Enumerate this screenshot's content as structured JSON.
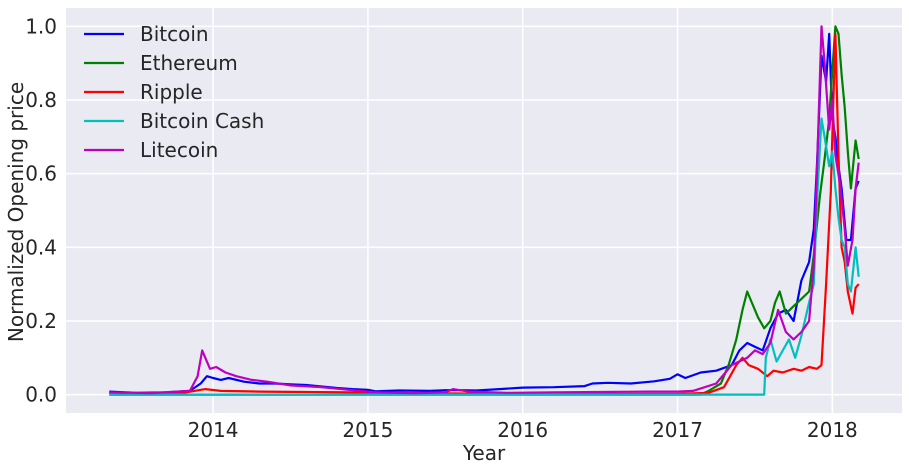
{
  "chart_data": {
    "type": "line",
    "title": "",
    "xlabel": "Year",
    "ylabel": "Normalized Opening price",
    "xlim": [
      2013.05,
      2018.45
    ],
    "ylim": [
      -0.05,
      1.05
    ],
    "grid": true,
    "legend_position": "top-left",
    "x_ticks": [
      {
        "value": 2014,
        "label": "2014"
      },
      {
        "value": 2015,
        "label": "2015"
      },
      {
        "value": 2016,
        "label": "2016"
      },
      {
        "value": 2017,
        "label": "2017"
      },
      {
        "value": 2018,
        "label": "2018"
      }
    ],
    "y_ticks": [
      {
        "value": 0.0,
        "label": "0.0"
      },
      {
        "value": 0.2,
        "label": "0.2"
      },
      {
        "value": 0.4,
        "label": "0.4"
      },
      {
        "value": 0.6,
        "label": "0.6"
      },
      {
        "value": 0.8,
        "label": "0.8"
      },
      {
        "value": 1.0,
        "label": "1.0"
      }
    ],
    "series": [
      {
        "name": "Bitcoin",
        "color": "#0000ff",
        "points": [
          [
            2013.33,
            0.008
          ],
          [
            2013.5,
            0.005
          ],
          [
            2013.7,
            0.006
          ],
          [
            2013.85,
            0.01
          ],
          [
            2013.92,
            0.03
          ],
          [
            2013.96,
            0.05
          ],
          [
            2014.0,
            0.045
          ],
          [
            2014.05,
            0.04
          ],
          [
            2014.1,
            0.045
          ],
          [
            2014.2,
            0.035
          ],
          [
            2014.3,
            0.03
          ],
          [
            2014.4,
            0.03
          ],
          [
            2014.5,
            0.028
          ],
          [
            2014.6,
            0.026
          ],
          [
            2014.7,
            0.022
          ],
          [
            2014.8,
            0.018
          ],
          [
            2014.9,
            0.015
          ],
          [
            2015.0,
            0.013
          ],
          [
            2015.05,
            0.009
          ],
          [
            2015.2,
            0.011
          ],
          [
            2015.4,
            0.01
          ],
          [
            2015.5,
            0.012
          ],
          [
            2015.6,
            0.012
          ],
          [
            2015.7,
            0.011
          ],
          [
            2015.85,
            0.015
          ],
          [
            2016.0,
            0.019
          ],
          [
            2016.2,
            0.02
          ],
          [
            2016.4,
            0.023
          ],
          [
            2016.45,
            0.03
          ],
          [
            2016.55,
            0.032
          ],
          [
            2016.7,
            0.03
          ],
          [
            2016.85,
            0.036
          ],
          [
            2016.95,
            0.043
          ],
          [
            2017.0,
            0.055
          ],
          [
            2017.05,
            0.045
          ],
          [
            2017.15,
            0.06
          ],
          [
            2017.25,
            0.065
          ],
          [
            2017.35,
            0.08
          ],
          [
            2017.4,
            0.12
          ],
          [
            2017.45,
            0.14
          ],
          [
            2017.5,
            0.13
          ],
          [
            2017.55,
            0.12
          ],
          [
            2017.6,
            0.18
          ],
          [
            2017.65,
            0.22
          ],
          [
            2017.7,
            0.23
          ],
          [
            2017.75,
            0.2
          ],
          [
            2017.8,
            0.31
          ],
          [
            2017.85,
            0.36
          ],
          [
            2017.88,
            0.45
          ],
          [
            2017.9,
            0.62
          ],
          [
            2017.93,
            0.92
          ],
          [
            2017.96,
            0.85
          ],
          [
            2017.98,
            0.98
          ],
          [
            2018.0,
            0.75
          ],
          [
            2018.02,
            0.7
          ],
          [
            2018.04,
            0.62
          ],
          [
            2018.06,
            0.56
          ],
          [
            2018.09,
            0.42
          ],
          [
            2018.12,
            0.42
          ],
          [
            2018.15,
            0.56
          ],
          [
            2018.17,
            0.58
          ]
        ]
      },
      {
        "name": "Ethereum",
        "color": "#008000",
        "points": [
          [
            2013.33,
            0.0
          ],
          [
            2017.15,
            0.0
          ],
          [
            2017.2,
            0.01
          ],
          [
            2017.28,
            0.03
          ],
          [
            2017.33,
            0.08
          ],
          [
            2017.38,
            0.15
          ],
          [
            2017.42,
            0.23
          ],
          [
            2017.45,
            0.28
          ],
          [
            2017.48,
            0.25
          ],
          [
            2017.52,
            0.21
          ],
          [
            2017.56,
            0.18
          ],
          [
            2017.6,
            0.2
          ],
          [
            2017.63,
            0.25
          ],
          [
            2017.66,
            0.28
          ],
          [
            2017.7,
            0.22
          ],
          [
            2017.75,
            0.24
          ],
          [
            2017.8,
            0.26
          ],
          [
            2017.85,
            0.28
          ],
          [
            2017.88,
            0.38
          ],
          [
            2017.92,
            0.54
          ],
          [
            2017.95,
            0.64
          ],
          [
            2017.98,
            0.75
          ],
          [
            2018.0,
            0.88
          ],
          [
            2018.02,
            1.0
          ],
          [
            2018.04,
            0.98
          ],
          [
            2018.06,
            0.87
          ],
          [
            2018.08,
            0.78
          ],
          [
            2018.1,
            0.66
          ],
          [
            2018.12,
            0.56
          ],
          [
            2018.15,
            0.69
          ],
          [
            2018.17,
            0.64
          ]
        ]
      },
      {
        "name": "Ripple",
        "color": "#ff0000",
        "points": [
          [
            2013.33,
            0.004
          ],
          [
            2013.8,
            0.004
          ],
          [
            2013.95,
            0.015
          ],
          [
            2014.05,
            0.01
          ],
          [
            2014.3,
            0.008
          ],
          [
            2014.6,
            0.007
          ],
          [
            2014.9,
            0.006
          ],
          [
            2015.2,
            0.004
          ],
          [
            2015.6,
            0.003
          ],
          [
            2016.0,
            0.002
          ],
          [
            2016.5,
            0.002
          ],
          [
            2017.0,
            0.002
          ],
          [
            2017.2,
            0.005
          ],
          [
            2017.3,
            0.02
          ],
          [
            2017.38,
            0.08
          ],
          [
            2017.42,
            0.1
          ],
          [
            2017.46,
            0.08
          ],
          [
            2017.52,
            0.07
          ],
          [
            2017.58,
            0.05
          ],
          [
            2017.62,
            0.065
          ],
          [
            2017.68,
            0.06
          ],
          [
            2017.75,
            0.07
          ],
          [
            2017.8,
            0.065
          ],
          [
            2017.85,
            0.075
          ],
          [
            2017.9,
            0.07
          ],
          [
            2017.93,
            0.08
          ],
          [
            2017.96,
            0.3
          ],
          [
            2017.99,
            0.55
          ],
          [
            2018.0,
            0.7
          ],
          [
            2018.02,
            0.98
          ],
          [
            2018.04,
            0.65
          ],
          [
            2018.06,
            0.4
          ],
          [
            2018.08,
            0.36
          ],
          [
            2018.1,
            0.28
          ],
          [
            2018.13,
            0.22
          ],
          [
            2018.15,
            0.29
          ],
          [
            2018.17,
            0.3
          ]
        ]
      },
      {
        "name": "Bitcoin Cash",
        "color": "#00bfbf",
        "points": [
          [
            2013.33,
            0.0
          ],
          [
            2017.56,
            0.0
          ],
          [
            2017.57,
            0.1
          ],
          [
            2017.6,
            0.15
          ],
          [
            2017.64,
            0.09
          ],
          [
            2017.68,
            0.12
          ],
          [
            2017.72,
            0.15
          ],
          [
            2017.76,
            0.1
          ],
          [
            2017.8,
            0.16
          ],
          [
            2017.85,
            0.25
          ],
          [
            2017.88,
            0.3
          ],
          [
            2017.9,
            0.52
          ],
          [
            2017.93,
            0.75
          ],
          [
            2017.95,
            0.7
          ],
          [
            2017.98,
            0.62
          ],
          [
            2018.0,
            0.66
          ],
          [
            2018.02,
            0.56
          ],
          [
            2018.04,
            0.48
          ],
          [
            2018.06,
            0.42
          ],
          [
            2018.08,
            0.4
          ],
          [
            2018.1,
            0.3
          ],
          [
            2018.12,
            0.28
          ],
          [
            2018.15,
            0.4
          ],
          [
            2018.17,
            0.32
          ]
        ]
      },
      {
        "name": "Litecoin",
        "color": "#bf00bf",
        "points": [
          [
            2013.33,
            0.006
          ],
          [
            2013.6,
            0.004
          ],
          [
            2013.85,
            0.01
          ],
          [
            2013.9,
            0.05
          ],
          [
            2013.93,
            0.12
          ],
          [
            2013.95,
            0.1
          ],
          [
            2013.98,
            0.07
          ],
          [
            2014.02,
            0.075
          ],
          [
            2014.08,
            0.06
          ],
          [
            2014.15,
            0.05
          ],
          [
            2014.25,
            0.04
          ],
          [
            2014.35,
            0.035
          ],
          [
            2014.5,
            0.025
          ],
          [
            2014.7,
            0.02
          ],
          [
            2014.9,
            0.012
          ],
          [
            2015.05,
            0.006
          ],
          [
            2015.3,
            0.004
          ],
          [
            2015.5,
            0.006
          ],
          [
            2015.55,
            0.015
          ],
          [
            2015.65,
            0.008
          ],
          [
            2015.9,
            0.005
          ],
          [
            2016.2,
            0.006
          ],
          [
            2016.5,
            0.007
          ],
          [
            2016.8,
            0.008
          ],
          [
            2017.0,
            0.008
          ],
          [
            2017.1,
            0.01
          ],
          [
            2017.25,
            0.03
          ],
          [
            2017.35,
            0.08
          ],
          [
            2017.45,
            0.1
          ],
          [
            2017.5,
            0.12
          ],
          [
            2017.55,
            0.11
          ],
          [
            2017.6,
            0.14
          ],
          [
            2017.65,
            0.23
          ],
          [
            2017.7,
            0.17
          ],
          [
            2017.75,
            0.15
          ],
          [
            2017.8,
            0.17
          ],
          [
            2017.85,
            0.2
          ],
          [
            2017.88,
            0.35
          ],
          [
            2017.9,
            0.6
          ],
          [
            2017.93,
            1.0
          ],
          [
            2017.95,
            0.9
          ],
          [
            2017.98,
            0.72
          ],
          [
            2018.0,
            0.8
          ],
          [
            2018.02,
            0.65
          ],
          [
            2018.05,
            0.57
          ],
          [
            2018.08,
            0.45
          ],
          [
            2018.1,
            0.35
          ],
          [
            2018.13,
            0.42
          ],
          [
            2018.15,
            0.56
          ],
          [
            2018.17,
            0.63
          ]
        ]
      }
    ]
  }
}
